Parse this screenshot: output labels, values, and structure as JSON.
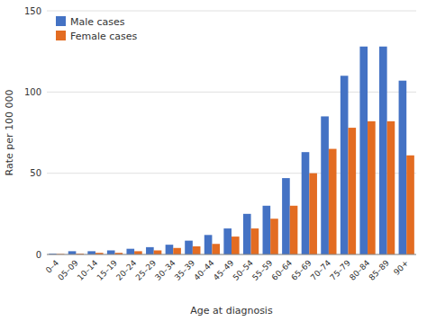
{
  "chart_data": {
    "type": "bar",
    "categories": [
      "0–4",
      "05–09",
      "10–14",
      "15–19",
      "20–24",
      "25–29",
      "30–34",
      "35–39",
      "40–44",
      "45–49",
      "50–54",
      "55–59",
      "60–64",
      "65–69",
      "70–74",
      "75–79",
      "80–84",
      "85–89",
      "90+"
    ],
    "series": [
      {
        "name": "Male cases",
        "color": "#4472c4",
        "values": [
          0.5,
          2.0,
          2.0,
          2.5,
          3.5,
          4.5,
          6.0,
          8.5,
          12.0,
          16.0,
          25.0,
          30.0,
          47.0,
          63.0,
          85.0,
          110.0,
          128.0,
          128.0,
          107.0
        ]
      },
      {
        "name": "Female cases",
        "color": "#e36c22",
        "values": [
          0.3,
          0.5,
          1.0,
          1.0,
          2.0,
          2.5,
          4.0,
          5.0,
          6.5,
          11.0,
          16.0,
          22.0,
          30.0,
          50.0,
          65.0,
          78.0,
          82.0,
          82.0,
          61.0
        ]
      }
    ],
    "xlabel": "Age at diagnosis",
    "ylabel": "Rate per 100 000",
    "ylim": [
      0,
      150
    ],
    "yticks": [
      0,
      50,
      100,
      150
    ],
    "grid": true,
    "legend": "upper left"
  }
}
